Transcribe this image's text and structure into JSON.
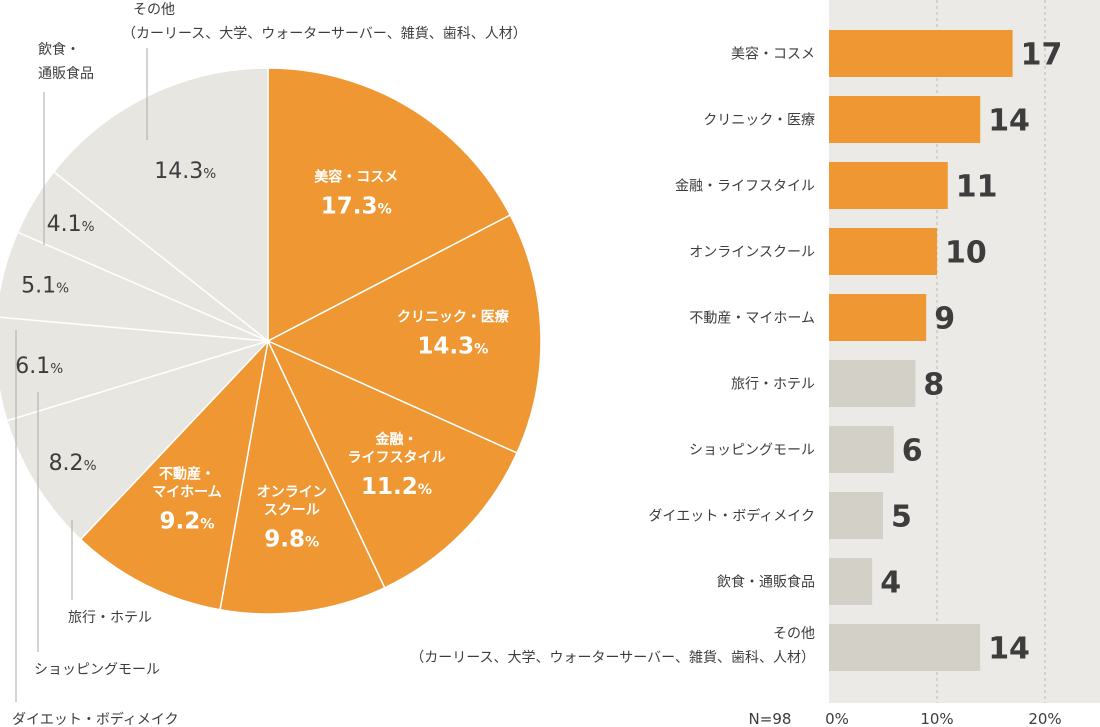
{
  "chart_data": [
    {
      "type": "pie",
      "slices": [
        {
          "label": "美容・コスメ",
          "value": 17.3,
          "value_label": "17.3",
          "highlight": true
        },
        {
          "label": "クリニック・医療",
          "value": 14.3,
          "value_label": "14.3",
          "highlight": true
        },
        {
          "label": "金融・ライフスタイル",
          "value": 11.2,
          "value_label": "11.2",
          "highlight": true
        },
        {
          "label": "オンラインスクール",
          "value": 9.8,
          "value_label": "9.8",
          "highlight": true
        },
        {
          "label": "不動産・マイホーム",
          "value": 9.2,
          "value_label": "9.2",
          "highlight": true
        },
        {
          "label": "旅行・ホテル",
          "value": 8.2,
          "value_label": "8.2",
          "highlight": false
        },
        {
          "label": "ショッピングモール",
          "value": 6.1,
          "value_label": "6.1",
          "highlight": false
        },
        {
          "label": "ダイエット・ボディメイク",
          "value": 5.1,
          "value_label": "5.1",
          "highlight": false
        },
        {
          "label": "飲食・通販食品",
          "value": 4.1,
          "value_label": "4.1",
          "highlight": false
        },
        {
          "label": "その他（カーリース、大学、ウォーターサーバー、雑貨、歯科、人材）",
          "value": 14.3,
          "value_label": "14.3",
          "highlight": false
        }
      ],
      "inside_labels": [
        [
          "美容・コスメ"
        ],
        [
          "クリニック・医療"
        ],
        [
          "金融・",
          "ライフスタイル"
        ],
        [
          "オンライン",
          "スクール"
        ],
        [
          "不動産・",
          "マイホーム"
        ]
      ],
      "outside_labels": [
        "旅行・ホテル",
        "ショッピングモール",
        "ダイエット・ボディメイク",
        [
          "飲食・",
          "通販食品"
        ],
        [
          "その他",
          "（カーリース、大学、ウォーターサーバー、雑貨、歯科、人材）"
        ]
      ],
      "unit": "%"
    },
    {
      "type": "bar",
      "orientation": "horizontal",
      "categories": [
        "美容・コスメ",
        "クリニック・医療",
        "金融・ライフスタイル",
        "オンラインスクール",
        "不動産・マイホーム",
        "旅行・ホテル",
        "ショッピングモール",
        "ダイエット・ボディメイク",
        "飲食・通販食品",
        "その他"
      ],
      "category_note": "（カーリース、大学、ウォーターサーバー、雑貨、歯科、人材）",
      "values": [
        17,
        14,
        11,
        10,
        9,
        8,
        6,
        5,
        4,
        14
      ],
      "highlight_count": 5,
      "n_label": "N=98",
      "ticks": [
        "0%",
        "10%",
        "20%"
      ],
      "tick_values": [
        0,
        10,
        20
      ],
      "xlim": [
        0,
        25
      ],
      "grid": true
    }
  ],
  "colors": {
    "orange": "#EE9733",
    "gray_bar": "#D3D1C7",
    "gray_slice": "#E8E6E1",
    "panel_bg": "#ECEAE6",
    "text_dark": "#3D3D3D",
    "text_white": "#FFFFFF"
  }
}
